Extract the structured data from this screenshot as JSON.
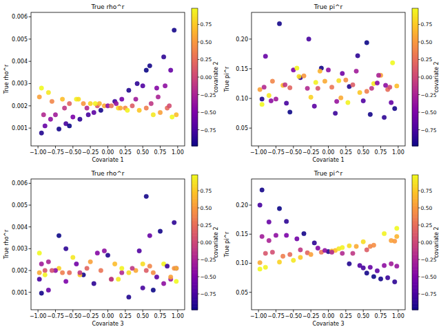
{
  "chart_data": [
    {
      "type": "scatter",
      "title": "True rho^r",
      "x_label": "Covariate 1",
      "y_label": "True rho^r",
      "x": [
        -0.95,
        -0.9,
        -0.85,
        -0.8,
        -0.75,
        -0.7,
        -0.65,
        -0.6,
        -0.55,
        -0.5,
        -0.45,
        -0.4,
        -0.35,
        -0.3,
        -0.25,
        -0.2,
        -0.15,
        -0.1,
        -0.05,
        0.0,
        0.05,
        0.1,
        0.15,
        0.2,
        0.25,
        0.3,
        0.35,
        0.4,
        0.45,
        0.5,
        0.55,
        0.6,
        0.65,
        0.7,
        0.75,
        0.8,
        0.85,
        0.9,
        0.95,
        0.98,
        -0.98,
        -0.92,
        0.88,
        0.72,
        0.62,
        -0.62,
        0.28,
        -0.28,
        0.12,
        -0.12,
        0.42,
        -0.42,
        0.82,
        -0.82,
        0.55,
        -0.55,
        0.18,
        -0.18,
        0.92,
        -0.95
      ],
      "values": [
        0.00078,
        0.0011,
        0.0026,
        0.0022,
        0.0016,
        0.00096,
        0.0023,
        0.0012,
        0.0021,
        0.0015,
        0.0023,
        0.0014,
        0.0021,
        0.0019,
        0.0021,
        0.0017,
        0.002,
        0.0018,
        0.002,
        0.002,
        0.002,
        0.0022,
        0.0019,
        0.0023,
        0.0019,
        0.0027,
        0.002,
        0.0023,
        0.0018,
        0.0029,
        0.0019,
        0.0038,
        0.0016,
        0.0028,
        0.0017,
        0.0042,
        0.0019,
        0.0036,
        0.0054,
        0.0016,
        0.0024,
        0.0016,
        0.002,
        0.0024,
        0.0021,
        0.0019,
        0.0018,
        0.0016,
        0.0021,
        0.0021,
        0.003,
        0.0023,
        0.0029,
        0.0014,
        0.0036,
        0.0011,
        0.0019,
        0.0021,
        0.0015,
        0.0028
      ],
      "color_values": [
        -0.9,
        -0.6,
        0.9,
        0.4,
        -0.3,
        -0.95,
        0.7,
        -0.75,
        0.2,
        -0.5,
        0.95,
        -0.85,
        0.5,
        -0.2,
        0.8,
        -0.65,
        0.1,
        -0.95,
        0.6,
        -0.4,
        0.3,
        -0.8,
        0.85,
        -0.55,
        0.45,
        -0.9,
        0.15,
        -0.3,
        0.75,
        -0.7,
        0.35,
        -0.95,
        0.9,
        -0.45,
        0.55,
        -0.85,
        0.25,
        -0.6,
        -0.95,
        0.7,
        0.55,
        -0.2,
        0.05,
        -0.25,
        -0.1,
        -0.1,
        0.95,
        -0.75,
        -0.35,
        0.65,
        -0.85,
        0.85,
        -0.4,
        -0.4,
        -0.98,
        -0.98,
        0.6,
        0.95,
        0.98,
        0.98
      ],
      "colorbar": {
        "label": "covariate 2",
        "lim": [
          -0.98,
          0.98
        ],
        "ticks": [
          {
            "value": -0.75,
            "label": "−0.75"
          },
          {
            "value": -0.5,
            "label": "−0.50"
          },
          {
            "value": -0.25,
            "label": "−0.25"
          },
          {
            "value": 0,
            "label": "0.00"
          },
          0.25,
          {
            "value": 0.5,
            "label": "0.50"
          },
          0.75
        ]
      },
      "xlim": [
        -1.1,
        1.1
      ],
      "ylim": [
        0.0002,
        0.0062
      ],
      "xticks": [
        {
          "value": -1,
          "label": "−1.00"
        },
        {
          "value": -0.75,
          "label": "−0.75"
        },
        {
          "value": -0.5,
          "label": "−0.50"
        },
        {
          "value": -0.25,
          "label": "−0.25"
        },
        {
          "value": 0,
          "label": "0.00"
        },
        0.25,
        {
          "value": 0.5,
          "label": "0.50"
        },
        0.75,
        {
          "value": 1,
          "label": "1.00"
        }
      ],
      "yticks": [
        0.001,
        0.002,
        0.003,
        0.004,
        0.005,
        0.006
      ]
    },
    {
      "type": "scatter",
      "title": "True pi^r",
      "x_label": "Covariate 1",
      "y_label": "True pi^r",
      "x": [
        -0.95,
        -0.9,
        -0.85,
        -0.8,
        -0.75,
        -0.7,
        -0.65,
        -0.6,
        -0.55,
        -0.5,
        -0.45,
        -0.4,
        -0.35,
        -0.3,
        -0.25,
        -0.2,
        -0.15,
        -0.1,
        -0.05,
        0.0,
        0.05,
        0.1,
        0.15,
        0.2,
        0.25,
        0.3,
        0.35,
        0.4,
        0.45,
        0.5,
        0.55,
        0.6,
        0.65,
        0.7,
        0.75,
        0.8,
        0.85,
        0.9,
        0.95,
        0.98,
        -0.98,
        -0.92,
        0.88,
        0.72,
        0.62,
        -0.62,
        0.28,
        -0.28,
        0.12,
        -0.12,
        0.42,
        -0.42,
        0.82,
        -0.82,
        0.55,
        -0.55,
        0.18,
        -0.18,
        0.92,
        -0.95
      ],
      "values": [
        0.099,
        0.171,
        0.105,
        0.129,
        0.099,
        0.226,
        0.122,
        0.092,
        0.118,
        0.148,
        0.151,
        0.135,
        0.138,
        0.117,
        0.102,
        0.087,
        0.117,
        0.151,
        0.129,
        0.148,
        0.119,
        0.075,
        0.13,
        0.142,
        0.131,
        0.12,
        0.123,
        0.146,
        0.11,
        0.096,
        0.112,
        0.073,
        0.125,
        0.126,
        0.139,
        0.068,
        0.115,
        0.093,
        0.083,
        0.121,
        0.115,
        0.119,
        0.119,
        0.139,
        0.117,
        0.123,
        0.093,
        0.2,
        0.095,
        0.146,
        0.172,
        0.137,
        0.122,
        0.096,
        0.194,
        0.077,
        0.101,
        0.127,
        0.16,
        0.09
      ],
      "color_values": [
        -0.9,
        -0.6,
        0.9,
        0.4,
        -0.3,
        -0.95,
        0.7,
        -0.75,
        0.2,
        -0.5,
        0.95,
        -0.85,
        0.5,
        -0.2,
        0.8,
        -0.65,
        0.1,
        -0.95,
        0.6,
        -0.4,
        0.3,
        -0.8,
        0.85,
        -0.55,
        0.45,
        -0.9,
        0.15,
        -0.3,
        0.75,
        -0.7,
        0.35,
        -0.95,
        0.9,
        -0.45,
        0.55,
        -0.85,
        0.25,
        -0.6,
        -0.95,
        0.7,
        0.55,
        -0.2,
        0.05,
        -0.25,
        -0.1,
        -0.1,
        0.95,
        -0.75,
        -0.35,
        0.65,
        -0.85,
        0.85,
        -0.4,
        -0.4,
        -0.98,
        -0.98,
        0.6,
        0.95,
        0.98,
        0.98
      ],
      "colorbar": {
        "label": "covariate 2",
        "lim": [
          -0.98,
          0.98
        ],
        "ticks": [
          {
            "value": -0.75,
            "label": "−0.75"
          },
          {
            "value": -0.5,
            "label": "−0.50"
          },
          {
            "value": -0.25,
            "label": "−0.25"
          },
          {
            "value": 0,
            "label": "0.00"
          },
          0.25,
          {
            "value": 0.5,
            "label": "0.50"
          },
          0.75
        ]
      },
      "xlim": [
        -1.1,
        1.1
      ],
      "ylim": [
        0.02,
        0.245
      ],
      "xticks": [
        {
          "value": -1,
          "label": "−1.00"
        },
        {
          "value": -0.75,
          "label": "−0.75"
        },
        {
          "value": -0.5,
          "label": "−0.50"
        },
        {
          "value": -0.25,
          "label": "−0.25"
        },
        {
          "value": 0,
          "label": "0.00"
        },
        0.25,
        {
          "value": 0.5,
          "label": "0.50"
        },
        0.75,
        {
          "value": 1,
          "label": "1.00"
        }
      ],
      "yticks": [
        0.05,
        {
          "value": 0.1,
          "label": "0.10"
        },
        0.15,
        {
          "value": 0.2,
          "label": "0.20"
        }
      ]
    },
    {
      "type": "scatter",
      "title": "True rho^r",
      "x_label": "Covariate 3",
      "y_label": "True rho^r",
      "x": [
        0.3,
        -0.85,
        -0.5,
        0.6,
        0.9,
        -0.95,
        0.1,
        0.5,
        -0.3,
        -0.6,
        0.8,
        -0.2,
        0.95,
        0.2,
        -0.7,
        0.7,
        -0.9,
        -0.35,
        0.4,
        -0.75,
        -0.1,
        0.85,
        0.3,
        -0.45,
        0.65,
        0.0,
        0.55,
        -0.95,
        -0.4,
        0.45,
        -0.65,
        0.75,
        0.15,
        -0.15,
        0.9,
        0.95,
        -0.55,
        0.6,
        0.55,
        0.05,
        -0.25,
        0.05,
        -0.8,
        -0.85,
        0.35,
        -0.4,
        -0.9,
        -0.98,
        0.98,
        0.98,
        -0.6,
        0.5,
        -0.05,
        0.8,
        -0.7,
        0.65,
        -0.98,
        0.2,
        0.98,
        -0.98
      ],
      "values": [
        0.00078,
        0.0011,
        0.0026,
        0.0022,
        0.0016,
        0.00096,
        0.0023,
        0.0012,
        0.0021,
        0.0015,
        0.0023,
        0.0014,
        0.0021,
        0.0019,
        0.0021,
        0.0017,
        0.002,
        0.0018,
        0.002,
        0.002,
        0.002,
        0.0022,
        0.0019,
        0.0023,
        0.0019,
        0.0027,
        0.002,
        0.0023,
        0.0018,
        0.0029,
        0.0019,
        0.0038,
        0.0016,
        0.0028,
        0.0017,
        0.0042,
        0.0019,
        0.0036,
        0.0054,
        0.0016,
        0.0024,
        0.0016,
        0.002,
        0.0024,
        0.0021,
        0.0019,
        0.0018,
        0.0016,
        0.0021,
        0.0021,
        0.003,
        0.0023,
        0.0029,
        0.0014,
        0.0036,
        0.0011,
        0.0019,
        0.0021,
        0.0015,
        0.0028
      ],
      "color_values": [
        -0.9,
        -0.6,
        0.9,
        0.4,
        -0.3,
        -0.95,
        0.7,
        -0.75,
        0.2,
        -0.5,
        0.95,
        -0.85,
        0.5,
        -0.2,
        0.8,
        -0.65,
        0.1,
        -0.95,
        0.6,
        -0.4,
        0.3,
        -0.8,
        0.85,
        -0.55,
        0.45,
        -0.9,
        0.15,
        -0.3,
        0.75,
        -0.7,
        0.35,
        -0.95,
        0.9,
        -0.45,
        0.55,
        -0.85,
        0.25,
        -0.6,
        -0.95,
        0.7,
        0.55,
        -0.2,
        0.05,
        -0.25,
        -0.1,
        -0.1,
        0.95,
        -0.75,
        -0.35,
        0.65,
        -0.85,
        0.85,
        -0.4,
        -0.4,
        -0.98,
        -0.98,
        0.6,
        0.95,
        0.98,
        0.98
      ],
      "colorbar": {
        "label": "covariate 2",
        "lim": [
          -0.98,
          0.98
        ],
        "ticks": [
          {
            "value": -0.75,
            "label": "−0.75"
          },
          {
            "value": -0.5,
            "label": "−0.50"
          },
          {
            "value": -0.25,
            "label": "−0.25"
          },
          {
            "value": 0,
            "label": "0.00"
          },
          0.25,
          {
            "value": 0.5,
            "label": "0.50"
          },
          0.75
        ]
      },
      "xlim": [
        -1.1,
        1.1
      ],
      "ylim": [
        0.0002,
        0.0062
      ],
      "xticks": [
        {
          "value": -1,
          "label": "−1.00"
        },
        {
          "value": -0.75,
          "label": "−0.75"
        },
        {
          "value": -0.5,
          "label": "−0.50"
        },
        {
          "value": -0.25,
          "label": "−0.25"
        },
        {
          "value": 0,
          "label": "0.00"
        },
        0.25,
        {
          "value": 0.5,
          "label": "0.50"
        },
        0.75,
        {
          "value": 1,
          "label": "1.00"
        }
      ],
      "yticks": [
        0.001,
        0.002,
        0.003,
        0.004,
        0.005,
        0.006
      ]
    },
    {
      "type": "scatter",
      "title": "True pi^r",
      "x_label": "Covariate 3",
      "y_label": "True pi^r",
      "x": [
        0.3,
        -0.85,
        -0.5,
        0.6,
        0.9,
        -0.95,
        0.1,
        0.5,
        -0.3,
        -0.6,
        0.8,
        -0.2,
        0.95,
        0.2,
        -0.7,
        0.7,
        -0.9,
        -0.35,
        0.4,
        -0.75,
        -0.1,
        0.85,
        0.3,
        -0.45,
        0.65,
        0.0,
        0.55,
        -0.95,
        -0.4,
        0.45,
        -0.65,
        0.75,
        0.15,
        -0.15,
        0.9,
        0.95,
        -0.55,
        0.6,
        0.55,
        0.05,
        -0.25,
        0.05,
        -0.8,
        -0.85,
        0.35,
        -0.4,
        -0.9,
        -0.98,
        0.98,
        0.98,
        -0.6,
        0.5,
        -0.05,
        0.8,
        -0.7,
        0.65,
        -0.98,
        0.2,
        0.98,
        -0.98
      ],
      "values": [
        0.099,
        0.171,
        0.105,
        0.129,
        0.099,
        0.226,
        0.122,
        0.092,
        0.118,
        0.148,
        0.151,
        0.135,
        0.138,
        0.117,
        0.102,
        0.087,
        0.117,
        0.151,
        0.129,
        0.148,
        0.119,
        0.075,
        0.13,
        0.142,
        0.131,
        0.12,
        0.123,
        0.146,
        0.11,
        0.096,
        0.112,
        0.073,
        0.125,
        0.126,
        0.139,
        0.068,
        0.115,
        0.093,
        0.083,
        0.121,
        0.115,
        0.119,
        0.119,
        0.139,
        0.117,
        0.123,
        0.093,
        0.2,
        0.095,
        0.146,
        0.172,
        0.137,
        0.122,
        0.096,
        0.194,
        0.077,
        0.101,
        0.127,
        0.16,
        0.09
      ],
      "color_values": [
        -0.9,
        -0.6,
        0.9,
        0.4,
        -0.3,
        -0.95,
        0.7,
        -0.75,
        0.2,
        -0.5,
        0.95,
        -0.85,
        0.5,
        -0.2,
        0.8,
        -0.65,
        0.1,
        -0.95,
        0.6,
        -0.4,
        0.3,
        -0.8,
        0.85,
        -0.55,
        0.45,
        -0.9,
        0.15,
        -0.3,
        0.75,
        -0.7,
        0.35,
        -0.95,
        0.9,
        -0.45,
        0.55,
        -0.85,
        0.25,
        -0.6,
        -0.95,
        0.7,
        0.55,
        -0.2,
        0.05,
        -0.25,
        -0.1,
        -0.1,
        0.95,
        -0.75,
        -0.35,
        0.65,
        -0.85,
        0.85,
        -0.4,
        -0.4,
        -0.98,
        -0.98,
        0.6,
        0.95,
        0.98,
        0.98
      ],
      "colorbar": {
        "label": "covariate 2",
        "lim": [
          -0.98,
          0.98
        ],
        "ticks": [
          {
            "value": -0.75,
            "label": "−0.75"
          },
          {
            "value": -0.5,
            "label": "−0.50"
          },
          {
            "value": -0.25,
            "label": "−0.25"
          },
          {
            "value": 0,
            "label": "0.00"
          },
          0.25,
          {
            "value": 0.5,
            "label": "0.50"
          },
          0.75
        ]
      },
      "xlim": [
        -1.1,
        1.1
      ],
      "ylim": [
        0.02,
        0.245
      ],
      "xticks": [
        {
          "value": -1,
          "label": "−1.00"
        },
        {
          "value": -0.75,
          "label": "−0.75"
        },
        {
          "value": -0.5,
          "label": "−0.50"
        },
        {
          "value": -0.25,
          "label": "−0.25"
        },
        {
          "value": 0,
          "label": "0.00"
        },
        0.25,
        {
          "value": 0.5,
          "label": "0.50"
        },
        0.75,
        {
          "value": 1,
          "label": "1.00"
        }
      ],
      "yticks": [
        0.05,
        {
          "value": 0.1,
          "label": "0.10"
        },
        0.15,
        {
          "value": 0.2,
          "label": "0.20"
        }
      ]
    }
  ]
}
